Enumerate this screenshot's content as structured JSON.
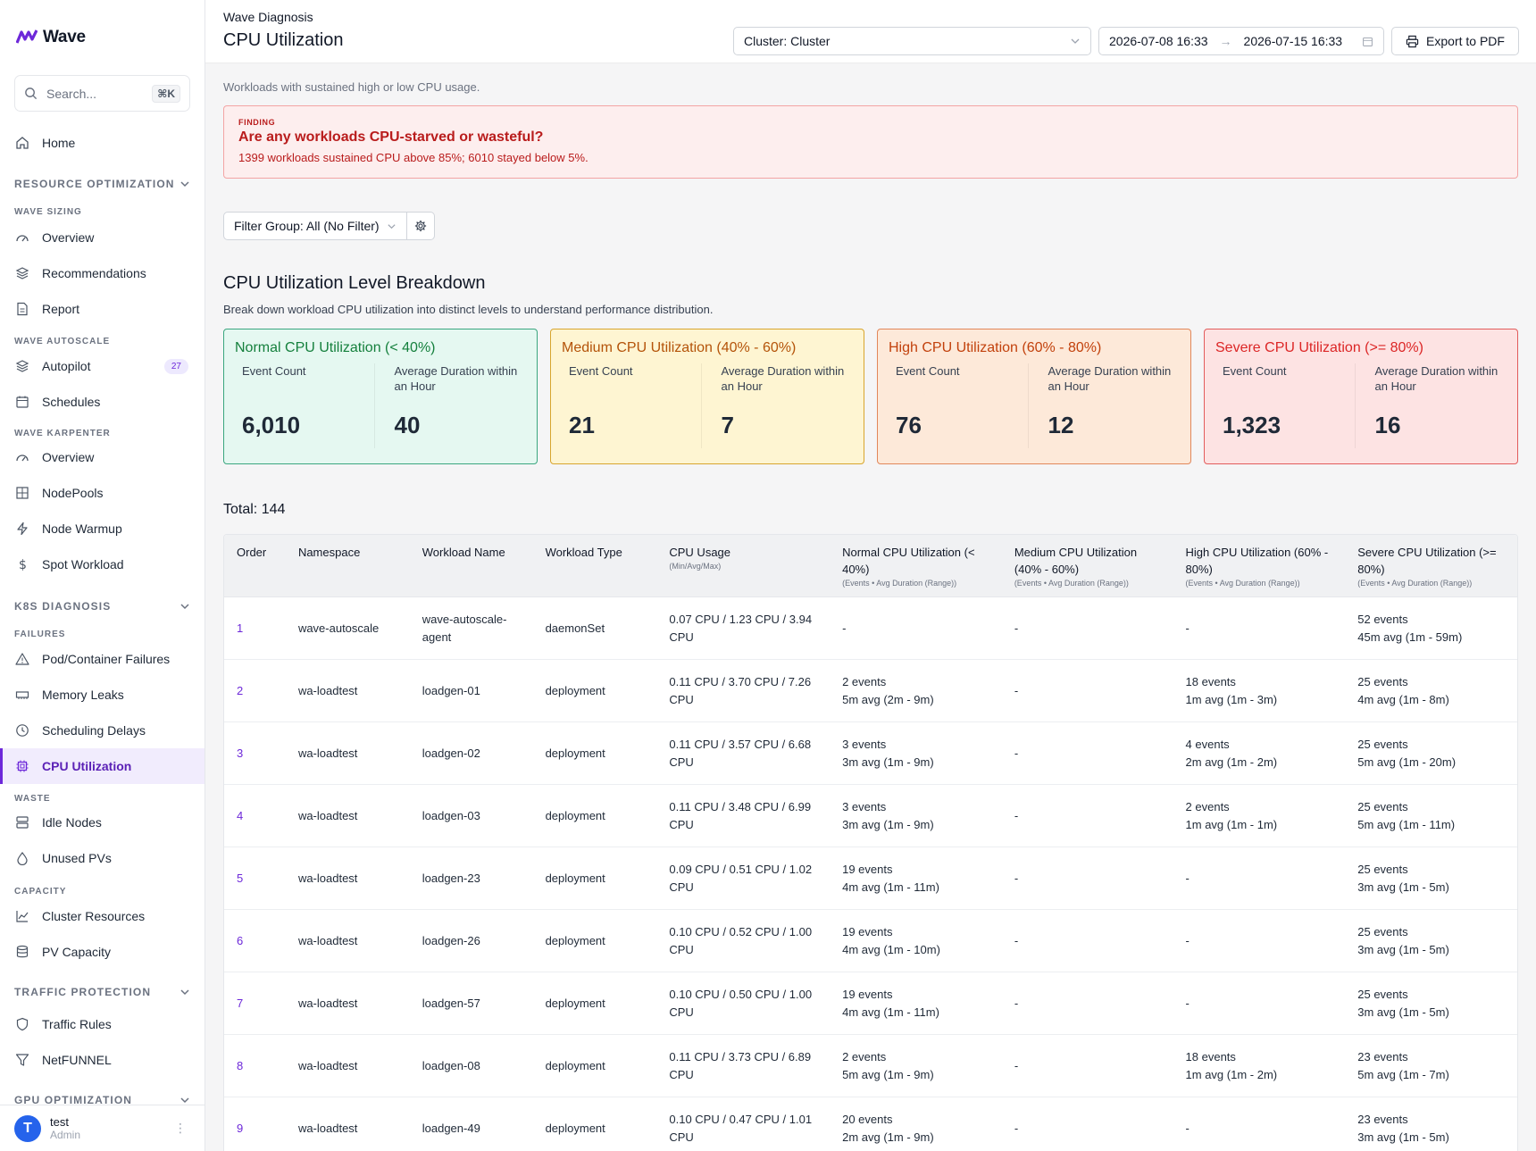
{
  "app": {
    "name": "Wave"
  },
  "search": {
    "placeholder": "Search...",
    "shortcut": "⌘K"
  },
  "nav": {
    "home": "Home",
    "resource_optimization": "RESOURCE OPTIMIZATION",
    "wave_sizing": "WAVE SIZING",
    "overview": "Overview",
    "recommendations": "Recommendations",
    "report": "Report",
    "wave_autoscale": "WAVE AUTOSCALE",
    "autopilot": "Autopilot",
    "autopilot_badge": "27",
    "schedules": "Schedules",
    "wave_karpenter": "WAVE KARPENTER",
    "karpenter_overview": "Overview",
    "nodepools": "NodePools",
    "node_warmup": "Node Warmup",
    "spot_workload": "Spot Workload",
    "k8s_diagnosis": "K8S DIAGNOSIS",
    "failures": "FAILURES",
    "pod_failures": "Pod/Container Failures",
    "memory_leaks": "Memory Leaks",
    "scheduling_delays": "Scheduling Delays",
    "cpu_utilization": "CPU Utilization",
    "waste": "WASTE",
    "idle_nodes": "Idle Nodes",
    "unused_pvs": "Unused PVs",
    "capacity": "CAPACITY",
    "cluster_resources": "Cluster Resources",
    "pv_capacity": "PV Capacity",
    "traffic_protection": "TRAFFIC PROTECTION",
    "traffic_rules": "Traffic Rules",
    "netfunnel": "NetFUNNEL",
    "gpu_optimization": "GPU OPTIMIZATION"
  },
  "user": {
    "initial": "T",
    "name": "test",
    "role": "Admin"
  },
  "header": {
    "breadcrumb": "Wave Diagnosis",
    "title": "CPU Utilization",
    "cluster": "Cluster: Cluster",
    "date_from": "2026-07-08 16:33",
    "date_to": "2026-07-15 16:33",
    "export": "Export to PDF"
  },
  "page": {
    "subtitle": "Workloads with sustained high or low CPU usage.",
    "finding_label": "FINDING",
    "finding_question": "Are any workloads CPU-starved or wasteful?",
    "finding_detail": "1399 workloads sustained CPU above 85%; 6010 stayed below 5%.",
    "filter_group": "Filter Group: All (No Filter)",
    "breakdown_title": "CPU Utilization Level Breakdown",
    "breakdown_desc": "Break down workload CPU utilization into distinct levels to understand performance distribution.",
    "total": "Total: 144"
  },
  "cards": [
    {
      "title": "Normal CPU Utilization (< 40%)",
      "count_label": "Event Count",
      "dur_label": "Average Duration within an Hour",
      "count": "6,010",
      "duration": "40"
    },
    {
      "title": "Medium CPU Utilization (40% - 60%)",
      "count_label": "Event Count",
      "dur_label": "Average Duration within an Hour",
      "count": "21",
      "duration": "7"
    },
    {
      "title": "High CPU Utilization (60% - 80%)",
      "count_label": "Event Count",
      "dur_label": "Average Duration within an Hour",
      "count": "76",
      "duration": "12"
    },
    {
      "title": "Severe CPU Utilization (>= 80%)",
      "count_label": "Event Count",
      "dur_label": "Average Duration within an Hour",
      "count": "1,323",
      "duration": "16"
    }
  ],
  "table": {
    "headers": {
      "order": "Order",
      "namespace": "Namespace",
      "workload": "Workload Name",
      "type": "Workload Type",
      "cpu": "CPU Usage",
      "cpu_sub": "(Min/Avg/Max)",
      "normal": "Normal CPU Utilization (< 40%)",
      "medium": "Medium CPU Utilization (40% - 60%)",
      "high": "High CPU Utilization (60% - 80%)",
      "severe": "Severe CPU Utilization (>= 80%)",
      "level_sub": "(Events • Avg Duration (Range))"
    },
    "rows": [
      {
        "order": "1",
        "namespace": "wave-autoscale",
        "workload": "wave-autoscale-agent",
        "type": "daemonSet",
        "cpu": "0.07 CPU / 1.23 CPU / 3.94 CPU",
        "normal": [
          "-",
          ""
        ],
        "medium": [
          "-",
          ""
        ],
        "high": [
          "-",
          ""
        ],
        "severe": [
          "52 events",
          "45m avg (1m - 59m)"
        ]
      },
      {
        "order": "2",
        "namespace": "wa-loadtest",
        "workload": "loadgen-01",
        "type": "deployment",
        "cpu": "0.11 CPU / 3.70 CPU / 7.26 CPU",
        "normal": [
          "2 events",
          "5m avg (2m - 9m)"
        ],
        "medium": [
          "-",
          ""
        ],
        "high": [
          "18 events",
          "1m avg (1m - 3m)"
        ],
        "severe": [
          "25 events",
          "4m avg (1m - 8m)"
        ]
      },
      {
        "order": "3",
        "namespace": "wa-loadtest",
        "workload": "loadgen-02",
        "type": "deployment",
        "cpu": "0.11 CPU / 3.57 CPU / 6.68 CPU",
        "normal": [
          "3 events",
          "3m avg (1m - 9m)"
        ],
        "medium": [
          "-",
          ""
        ],
        "high": [
          "4 events",
          "2m avg (1m - 2m)"
        ],
        "severe": [
          "25 events",
          "5m avg (1m - 20m)"
        ]
      },
      {
        "order": "4",
        "namespace": "wa-loadtest",
        "workload": "loadgen-03",
        "type": "deployment",
        "cpu": "0.11 CPU / 3.48 CPU / 6.99 CPU",
        "normal": [
          "3 events",
          "3m avg (1m - 9m)"
        ],
        "medium": [
          "-",
          ""
        ],
        "high": [
          "2 events",
          "1m avg (1m - 1m)"
        ],
        "severe": [
          "25 events",
          "5m avg (1m - 11m)"
        ]
      },
      {
        "order": "5",
        "namespace": "wa-loadtest",
        "workload": "loadgen-23",
        "type": "deployment",
        "cpu": "0.09 CPU / 0.51 CPU / 1.02 CPU",
        "normal": [
          "19 events",
          "4m avg (1m - 11m)"
        ],
        "medium": [
          "-",
          ""
        ],
        "high": [
          "-",
          ""
        ],
        "severe": [
          "25 events",
          "3m avg (1m - 5m)"
        ]
      },
      {
        "order": "6",
        "namespace": "wa-loadtest",
        "workload": "loadgen-26",
        "type": "deployment",
        "cpu": "0.10 CPU / 0.52 CPU / 1.00 CPU",
        "normal": [
          "19 events",
          "4m avg (1m - 10m)"
        ],
        "medium": [
          "-",
          ""
        ],
        "high": [
          "-",
          ""
        ],
        "severe": [
          "25 events",
          "3m avg (1m - 5m)"
        ]
      },
      {
        "order": "7",
        "namespace": "wa-loadtest",
        "workload": "loadgen-57",
        "type": "deployment",
        "cpu": "0.10 CPU / 0.50 CPU / 1.00 CPU",
        "normal": [
          "19 events",
          "4m avg (1m - 11m)"
        ],
        "medium": [
          "-",
          ""
        ],
        "high": [
          "-",
          ""
        ],
        "severe": [
          "25 events",
          "3m avg (1m - 5m)"
        ]
      },
      {
        "order": "8",
        "namespace": "wa-loadtest",
        "workload": "loadgen-08",
        "type": "deployment",
        "cpu": "0.11 CPU / 3.73 CPU / 6.89 CPU",
        "normal": [
          "2 events",
          "5m avg (1m - 9m)"
        ],
        "medium": [
          "-",
          ""
        ],
        "high": [
          "18 events",
          "1m avg (1m - 2m)"
        ],
        "severe": [
          "23 events",
          "5m avg (1m - 7m)"
        ]
      },
      {
        "order": "9",
        "namespace": "wa-loadtest",
        "workload": "loadgen-49",
        "type": "deployment",
        "cpu": "0.10 CPU / 0.47 CPU / 1.01 CPU",
        "normal": [
          "20 events",
          "2m avg (1m - 9m)"
        ],
        "medium": [
          "-",
          ""
        ],
        "high": [
          "-",
          ""
        ],
        "severe": [
          "23 events",
          "3m avg (1m - 5m)"
        ]
      }
    ]
  },
  "colors": {
    "accent": "#6d28d9",
    "finding": "#b91c1c"
  }
}
